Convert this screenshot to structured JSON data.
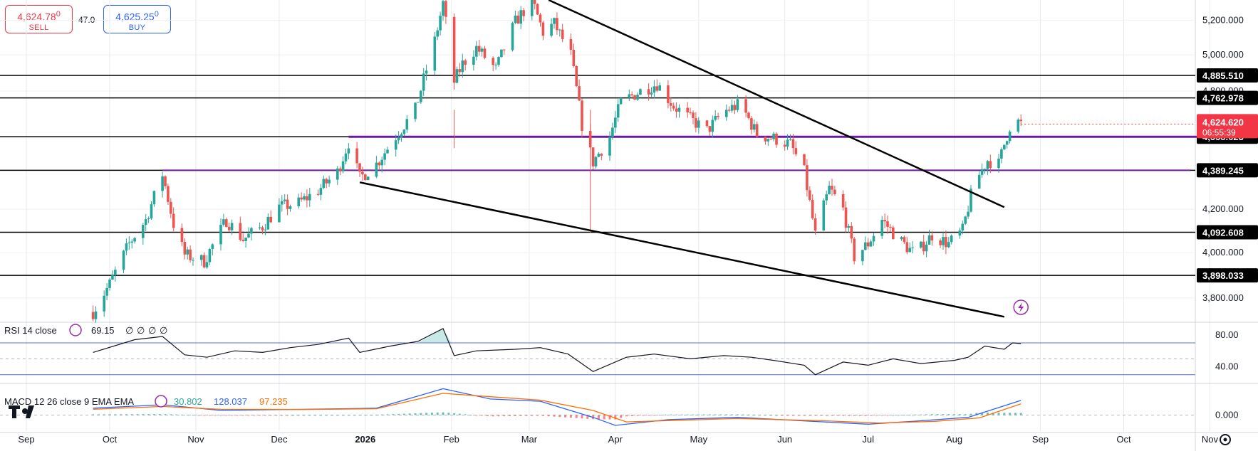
{
  "trade": {
    "sell_price": "4,624.78",
    "sell_price_small": "0",
    "sell_label": "SELL",
    "spread": "47.0",
    "buy_price": "4,625.25",
    "buy_price_small": "0",
    "buy_label": "BUY"
  },
  "colors": {
    "up": "#26a69a",
    "down": "#ef5350",
    "level_line": "#000000",
    "purple_line": "#6a1b9a",
    "rsi_band": "#5a6fd6",
    "macd_line": "#2962ff",
    "signal_line": "#ff6d00",
    "current_price_label": "#f23645"
  },
  "chart_data": [
    {
      "type": "candlestick",
      "title": "",
      "x_labels": [
        "Sep",
        "Oct",
        "Nov",
        "Dec",
        "2026",
        "Feb",
        "Mar",
        "Apr",
        "May",
        "Jun",
        "Jul",
        "Aug",
        "Sep",
        "Oct",
        "Nov"
      ],
      "y_ticks": [
        "5,200.000",
        "5,000.000",
        "4,800.000",
        "4,200.000",
        "4,000.000",
        "3,800.000"
      ],
      "ylim": [
        3700,
        5320
      ],
      "y_scale": "log",
      "horizontal_levels": [
        "4,885.510",
        "4,762.978",
        "4,558.623",
        "4,389.245",
        "4,092.608",
        "3,898.033"
      ],
      "purple_levels": [
        "4,558.623",
        "4,389.245"
      ],
      "current_price": "4,624.620",
      "countdown": "06:55:39",
      "close_path": [
        [
          "2025-09-25",
          3740
        ],
        [
          "2025-10-01",
          3860
        ],
        [
          "2025-10-08",
          4040
        ],
        [
          "2025-10-14",
          4150
        ],
        [
          "2025-10-20",
          4370
        ],
        [
          "2025-10-24",
          4130
        ],
        [
          "2025-10-28",
          3990
        ],
        [
          "2025-11-04",
          3960
        ],
        [
          "2025-11-12",
          4150
        ],
        [
          "2025-11-18",
          4060
        ],
        [
          "2025-11-25",
          4120
        ],
        [
          "2025-12-01",
          4210
        ],
        [
          "2025-12-08",
          4230
        ],
        [
          "2025-12-15",
          4290
        ],
        [
          "2025-12-22",
          4380
        ],
        [
          "2025-12-26",
          4530
        ],
        [
          "2025-12-30",
          4350
        ],
        [
          "2026-01-05",
          4420
        ],
        [
          "2026-01-12",
          4560
        ],
        [
          "2026-01-19",
          4700
        ],
        [
          "2026-01-26",
          5080
        ],
        [
          "2026-01-29",
          5300
        ],
        [
          "2026-02-02",
          4850
        ],
        [
          "2026-02-05",
          4950
        ],
        [
          "2026-02-10",
          5040
        ],
        [
          "2026-02-17",
          4920
        ],
        [
          "2026-02-24",
          5190
        ],
        [
          "2026-03-02",
          5320
        ],
        [
          "2026-03-06",
          5130
        ],
        [
          "2026-03-10",
          5180
        ],
        [
          "2026-03-16",
          5000
        ],
        [
          "2026-03-20",
          4620
        ],
        [
          "2026-03-24",
          4430
        ],
        [
          "2026-03-30",
          4560
        ],
        [
          "2026-04-03",
          4740
        ],
        [
          "2026-04-10",
          4800
        ],
        [
          "2026-04-16",
          4840
        ],
        [
          "2026-04-22",
          4720
        ],
        [
          "2026-04-28",
          4650
        ],
        [
          "2026-05-04",
          4590
        ],
        [
          "2026-05-10",
          4690
        ],
        [
          "2026-05-16",
          4730
        ],
        [
          "2026-05-22",
          4570
        ],
        [
          "2026-05-28",
          4550
        ],
        [
          "2026-06-03",
          4520
        ],
        [
          "2026-06-08",
          4380
        ],
        [
          "2026-06-12",
          4080
        ],
        [
          "2026-06-17",
          4300
        ],
        [
          "2026-06-22",
          4200
        ],
        [
          "2026-06-26",
          3980
        ],
        [
          "2026-07-01",
          4040
        ],
        [
          "2026-07-06",
          4150
        ],
        [
          "2026-07-12",
          4060
        ],
        [
          "2026-07-18",
          3990
        ],
        [
          "2026-07-24",
          4080
        ],
        [
          "2026-07-30",
          4040
        ],
        [
          "2026-08-04",
          4100
        ],
        [
          "2026-08-08",
          4320
        ],
        [
          "2026-08-13",
          4440
        ],
        [
          "2026-08-17",
          4420
        ],
        [
          "2026-08-19",
          4520
        ],
        [
          "2026-08-22",
          4660
        ],
        [
          "2026-08-25",
          4624
        ]
      ],
      "wick_extremes": [
        [
          "2026-02-02",
          4500
        ],
        [
          "2026-03-23",
          4090
        ]
      ],
      "trendlines": [
        {
          "name": "upper",
          "from": [
            "2026-03-08",
            5320
          ],
          "to": [
            "2026-08-19",
            4210
          ]
        },
        {
          "name": "lower",
          "from": [
            "2025-12-30",
            4330
          ],
          "to": [
            "2026-08-19",
            3720
          ]
        }
      ]
    },
    {
      "type": "line",
      "title": "RSI 14 close",
      "value": "69.15",
      "placeholders": [
        "∅",
        "∅",
        "∅",
        "∅"
      ],
      "y_ticks": [
        "80.00",
        "40.00"
      ],
      "ylim": [
        20,
        95
      ],
      "bands": [
        70,
        30
      ],
      "midline": 50,
      "path": [
        [
          "2025-09-25",
          58
        ],
        [
          "2025-10-10",
          74
        ],
        [
          "2025-10-20",
          78
        ],
        [
          "2025-10-28",
          55
        ],
        [
          "2025-11-05",
          52
        ],
        [
          "2025-11-15",
          60
        ],
        [
          "2025-11-25",
          58
        ],
        [
          "2025-12-05",
          64
        ],
        [
          "2025-12-15",
          68
        ],
        [
          "2025-12-26",
          76
        ],
        [
          "2025-12-30",
          58
        ],
        [
          "2026-01-10",
          66
        ],
        [
          "2026-01-20",
          72
        ],
        [
          "2026-01-29",
          88
        ],
        [
          "2026-02-02",
          54
        ],
        [
          "2026-02-10",
          60
        ],
        [
          "2026-02-24",
          62
        ],
        [
          "2026-03-05",
          64
        ],
        [
          "2026-03-15",
          56
        ],
        [
          "2026-03-24",
          34
        ],
        [
          "2026-04-05",
          52
        ],
        [
          "2026-04-15",
          56
        ],
        [
          "2026-04-28",
          50
        ],
        [
          "2026-05-10",
          54
        ],
        [
          "2026-05-20",
          52
        ],
        [
          "2026-05-28",
          48
        ],
        [
          "2026-06-08",
          42
        ],
        [
          "2026-06-12",
          30
        ],
        [
          "2026-06-22",
          46
        ],
        [
          "2026-07-01",
          42
        ],
        [
          "2026-07-10",
          50
        ],
        [
          "2026-07-20",
          44
        ],
        [
          "2026-08-01",
          48
        ],
        [
          "2026-08-06",
          52
        ],
        [
          "2026-08-12",
          66
        ],
        [
          "2026-08-19",
          62
        ],
        [
          "2026-08-22",
          70
        ],
        [
          "2026-08-25",
          69.15
        ]
      ]
    },
    {
      "type": "line",
      "title": "MACD 12 26 close 9 EMA EMA",
      "values": [
        "30.802",
        "128.037",
        "97.235"
      ],
      "value_colors": [
        "#26a69a",
        "#2962ff",
        "#ff6d00"
      ],
      "y_ticks": [
        "0.000"
      ],
      "ylim": [
        -140,
        270
      ],
      "series": [
        {
          "name": "MACD",
          "color": "#2962ff",
          "path": [
            [
              "2025-09-25",
              60
            ],
            [
              "2025-10-20",
              90
            ],
            [
              "2025-11-10",
              40
            ],
            [
              "2025-12-10",
              50
            ],
            [
              "2026-01-05",
              60
            ],
            [
              "2026-01-29",
              230
            ],
            [
              "2026-02-15",
              140
            ],
            [
              "2026-03-05",
              120
            ],
            [
              "2026-03-24",
              -20
            ],
            [
              "2026-04-01",
              -90
            ],
            [
              "2026-04-20",
              -40
            ],
            [
              "2026-05-15",
              -20
            ],
            [
              "2026-06-15",
              -60
            ],
            [
              "2026-07-01",
              -80
            ],
            [
              "2026-07-20",
              -50
            ],
            [
              "2026-08-06",
              -20
            ],
            [
              "2026-08-25",
              128
            ]
          ]
        },
        {
          "name": "Signal",
          "color": "#ff6d00",
          "path": [
            [
              "2025-09-25",
              50
            ],
            [
              "2025-10-20",
              75
            ],
            [
              "2025-11-10",
              50
            ],
            [
              "2025-12-10",
              48
            ],
            [
              "2026-01-05",
              55
            ],
            [
              "2026-01-29",
              190
            ],
            [
              "2026-02-15",
              160
            ],
            [
              "2026-03-05",
              130
            ],
            [
              "2026-03-24",
              40
            ],
            [
              "2026-04-05",
              -60
            ],
            [
              "2026-04-25",
              -45
            ],
            [
              "2026-05-15",
              -30
            ],
            [
              "2026-06-15",
              -50
            ],
            [
              "2026-07-05",
              -70
            ],
            [
              "2026-07-25",
              -55
            ],
            [
              "2026-08-10",
              -25
            ],
            [
              "2026-08-25",
              97
            ]
          ]
        }
      ]
    }
  ]
}
